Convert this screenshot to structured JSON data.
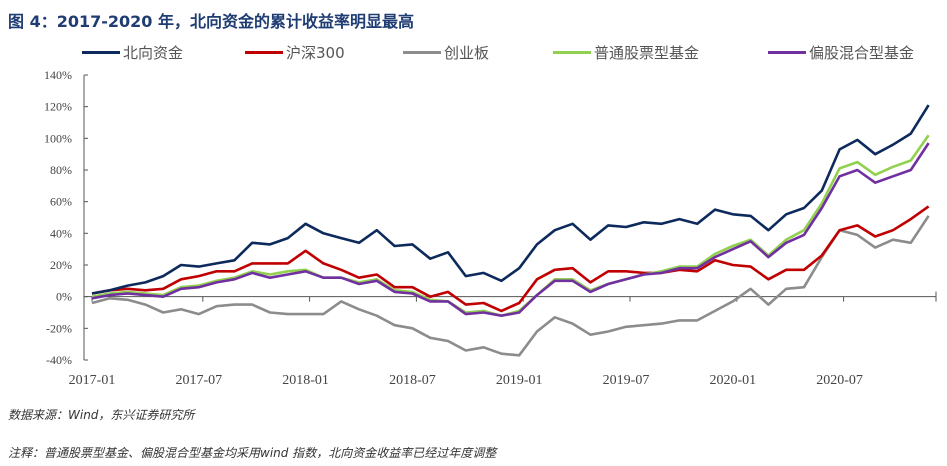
{
  "title": "图 4：2017-2020 年，北向资金的累计收益率明显最高",
  "source": "数据来源：Wind，东兴证券研究所",
  "footnote": "注释：普通股票型基金、偏股混合型基金均采用wind 指数，北向资金收益率已经过年度调整",
  "chart_data": {
    "type": "line",
    "title": "",
    "xlabel": "",
    "ylabel": "",
    "ylim": [
      -40,
      140
    ],
    "yticks": [
      -40,
      -20,
      0,
      20,
      40,
      60,
      80,
      100,
      120,
      140
    ],
    "ytick_labels": [
      "-40%",
      "-20%",
      "0%",
      "20%",
      "40%",
      "60%",
      "80%",
      "100%",
      "120%",
      "140%"
    ],
    "xtick_labels": [
      "2017-01",
      "2017-07",
      "2018-01",
      "2018-07",
      "2019-01",
      "2019-07",
      "2020-01",
      "2020-07"
    ],
    "x_start": "2017-01",
    "x_end": "2020-12",
    "x_frequency": "monthly",
    "grid": false,
    "legend_position": "top",
    "series": [
      {
        "name": "北向资金",
        "color": "#0d2a5c",
        "values": [
          2,
          4,
          7,
          9,
          13,
          20,
          19,
          21,
          23,
          34,
          33,
          37,
          46,
          40,
          37,
          34,
          42,
          32,
          33,
          24,
          28,
          13,
          15,
          10,
          18,
          33,
          42,
          46,
          36,
          45,
          44,
          47,
          46,
          49,
          46,
          55,
          52,
          51,
          42,
          52,
          56,
          67,
          93,
          99,
          90,
          96,
          103,
          121
        ]
      },
      {
        "name": "沪深300",
        "color": "#c00000",
        "values": [
          2,
          4,
          5,
          4,
          5,
          11,
          13,
          16,
          16,
          21,
          21,
          21,
          29,
          21,
          17,
          12,
          14,
          6,
          6,
          0,
          3,
          -5,
          -4,
          -9,
          -4,
          11,
          17,
          18,
          9,
          16,
          16,
          15,
          15,
          17,
          16,
          23,
          20,
          19,
          11,
          17,
          17,
          26,
          42,
          45,
          38,
          42,
          49,
          57
        ]
      },
      {
        "name": "创业板",
        "color": "#8c8c8c",
        "values": [
          -4,
          -1,
          -2,
          -5,
          -10,
          -8,
          -11,
          -6,
          -5,
          -5,
          -10,
          -11,
          -11,
          -11,
          -3,
          -8,
          -12,
          -18,
          -20,
          -26,
          -28,
          -34,
          -32,
          -36,
          -37,
          -22,
          -13,
          -17,
          -24,
          -22,
          -19,
          -18,
          -17,
          -15,
          -15,
          -9,
          -3,
          5,
          -5,
          5,
          6,
          25,
          42,
          39,
          31,
          36,
          34,
          51
        ]
      },
      {
        "name": "普通股票型基金",
        "color": "#92d050",
        "values": [
          0,
          2,
          3,
          2,
          1,
          6,
          7,
          10,
          12,
          16,
          14,
          16,
          17,
          12,
          12,
          9,
          11,
          4,
          3,
          -2,
          -3,
          -10,
          -9,
          -12,
          -9,
          1,
          11,
          11,
          4,
          8,
          11,
          14,
          16,
          19,
          19,
          27,
          32,
          36,
          26,
          36,
          42,
          59,
          81,
          85,
          77,
          82,
          86,
          102
        ]
      },
      {
        "name": "偏股混合型基金",
        "color": "#7030a0",
        "values": [
          -1,
          1,
          2,
          1,
          0,
          5,
          6,
          9,
          11,
          15,
          12,
          14,
          16,
          12,
          12,
          8,
          10,
          3,
          2,
          -3,
          -3,
          -11,
          -10,
          -12,
          -10,
          1,
          10,
          10,
          3,
          8,
          11,
          14,
          15,
          18,
          18,
          25,
          30,
          35,
          25,
          34,
          39,
          56,
          76,
          80,
          72,
          76,
          80,
          97
        ]
      }
    ]
  }
}
